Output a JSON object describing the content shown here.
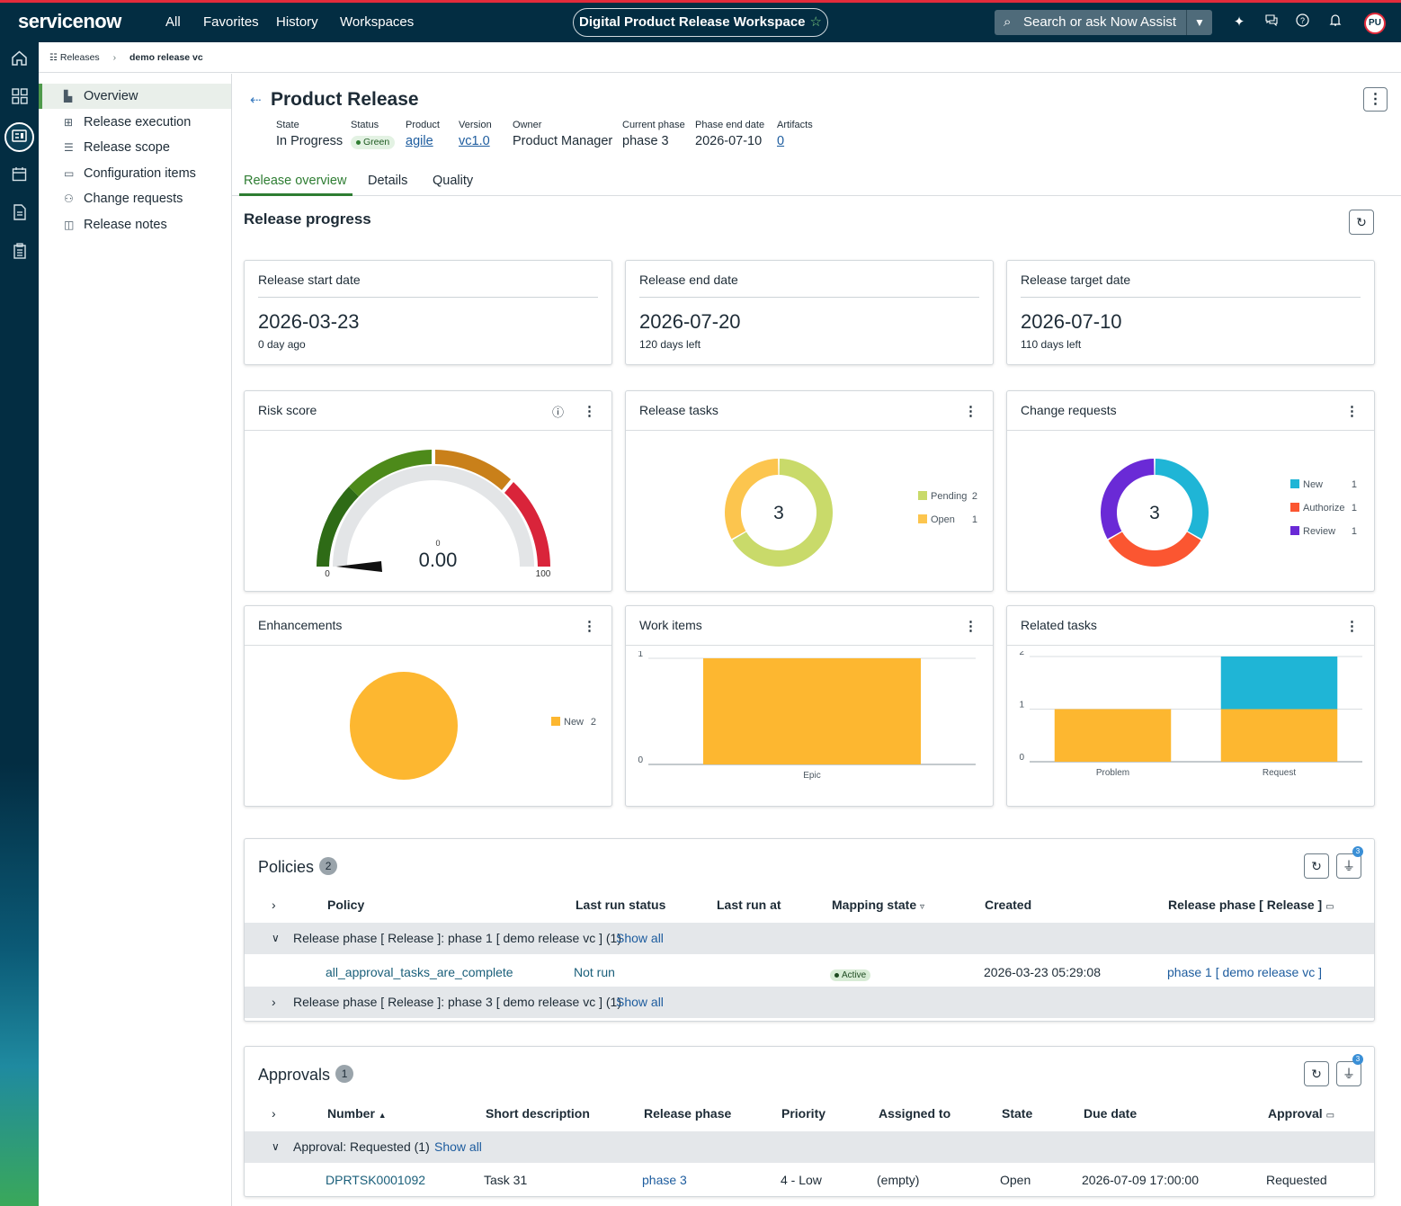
{
  "topbar": {
    "logo": "servicenow",
    "nav": [
      "All",
      "Favorites",
      "History",
      "Workspaces"
    ],
    "workspace": "Digital Product Release Workspace",
    "search_placeholder": "Search or ask Now Assist",
    "avatar": "PU",
    "accent": "#e32b3b",
    "bg": "#032d42"
  },
  "breadcrumb": {
    "root": "Releases",
    "current": "demo release vc"
  },
  "sidenav": {
    "items": [
      {
        "label": "Overview",
        "icon": "bar-chart-icon"
      },
      {
        "label": "Release execution",
        "icon": "list-icon"
      },
      {
        "label": "Release scope",
        "icon": "list-icon"
      },
      {
        "label": "Configuration items",
        "icon": "calendar-icon"
      },
      {
        "label": "Change requests",
        "icon": "grid-icon"
      },
      {
        "label": "Release notes",
        "icon": "note-icon"
      }
    ]
  },
  "record": {
    "title": "Product Release",
    "fields": [
      {
        "label": "State",
        "value": "In Progress"
      },
      {
        "label": "Status",
        "value": "Green"
      },
      {
        "label": "Product",
        "value": "agile"
      },
      {
        "label": "Version",
        "value": "vc1.0"
      },
      {
        "label": "Owner",
        "value": "Product Manager"
      },
      {
        "label": "Current phase",
        "value": "phase 3"
      },
      {
        "label": "Phase end date",
        "value": "2026-07-10"
      },
      {
        "label": "Artifacts",
        "value": "0"
      }
    ]
  },
  "tabs": [
    "Release overview",
    "Details",
    "Quality"
  ],
  "progress": {
    "title": "Release progress",
    "dates": [
      {
        "title": "Release start date",
        "date": "2026-03-23",
        "note": "0 day ago"
      },
      {
        "title": "Release end date",
        "date": "2026-07-20",
        "note": "120 days left"
      },
      {
        "title": "Release target date",
        "date": "2026-07-10",
        "note": "110 days left"
      }
    ]
  },
  "widgets": {
    "risk": {
      "title": "Risk score",
      "value": "0.00",
      "small": "0",
      "min": "0",
      "max": "100",
      "score": 0
    },
    "tasks": {
      "title": "Release tasks",
      "total": "3",
      "legend": [
        {
          "label": "Pending",
          "count": "2",
          "value": 2,
          "color": "#c9da6a"
        },
        {
          "label": "Open",
          "count": "1",
          "value": 1,
          "color": "#fcc54e"
        }
      ]
    },
    "changes": {
      "title": "Change requests",
      "total": "3",
      "legend": [
        {
          "label": "New",
          "count": "1",
          "value": 1,
          "color": "#1fb5d6"
        },
        {
          "label": "Authorize",
          "count": "1",
          "value": 1,
          "color": "#fb5631"
        },
        {
          "label": "Review",
          "count": "1",
          "value": 1,
          "color": "#6a2ad6"
        }
      ]
    },
    "enh": {
      "title": "Enhancements",
      "legend": [
        {
          "label": "New",
          "count": "2",
          "value": 2,
          "color": "#fdb730"
        }
      ]
    },
    "work": {
      "title": "Work items"
    },
    "related": {
      "title": "Related tasks"
    }
  },
  "chart_data": [
    {
      "type": "bar",
      "title": "Work items",
      "categories": [
        "Epic"
      ],
      "values": [
        1
      ],
      "ylim": [
        0,
        1
      ],
      "yticks": [
        "0",
        "1"
      ],
      "color": "#fdb730"
    },
    {
      "type": "bar",
      "title": "Related tasks",
      "categories": [
        "Problem",
        "Request"
      ],
      "series": [
        {
          "values": [
            1,
            1
          ],
          "color": "#fdb730"
        },
        {
          "values": [
            0,
            1
          ],
          "color": "#1fb5d6"
        }
      ],
      "ylim": [
        0,
        2
      ],
      "yticks": [
        "0",
        "1",
        "2"
      ]
    }
  ],
  "policies": {
    "title": "Policies",
    "count": "2",
    "filter_count": "3",
    "columns": [
      "Policy",
      "Last run status",
      "Last run at",
      "Mapping state",
      "Created",
      "Release phase [ Release ]"
    ],
    "groups": [
      {
        "label": "Release phase [ Release ]: phase 1 [ demo release vc ] (1)",
        "show": "Show all"
      },
      {
        "label": "Release phase [ Release ]: phase 3 [ demo release vc ] (1)",
        "show": "Show all"
      }
    ],
    "row": {
      "policy": "all_approval_tasks_are_complete",
      "status": "Not run",
      "mapping": "Active",
      "created": "2026-03-23 05:29:08",
      "phase": "phase 1 [ demo release vc ]"
    }
  },
  "approvals": {
    "title": "Approvals",
    "count": "1",
    "filter_count": "3",
    "columns": [
      "Number",
      "Short description",
      "Release phase",
      "Priority",
      "Assigned to",
      "State",
      "Due date",
      "Approval"
    ],
    "group": {
      "label": "Approval: Requested (1)",
      "show": "Show all"
    },
    "row": {
      "number": "DPRTSK0001092",
      "desc": "Task 31",
      "phase": "phase 3",
      "priority": "4 - Low",
      "assigned": "(empty)",
      "state": "Open",
      "due": "2026-07-09 17:00:00",
      "approval": "Requested"
    }
  }
}
